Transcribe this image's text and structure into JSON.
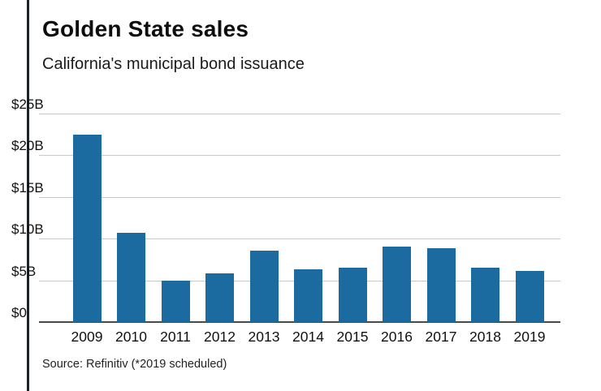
{
  "header": {
    "title": "Golden State sales",
    "subtitle": "California's municipal bond issuance"
  },
  "source": "Source: Refinitiv (*2019 scheduled)",
  "colors": {
    "bar": "#1b6ba0",
    "accent_rule": "#18242e",
    "gridline": "#c9c9c9",
    "baseline": "#4a4a4a"
  },
  "chart_data": {
    "type": "bar",
    "title": "Golden State sales",
    "subtitle": "California's municipal bond issuance",
    "categories": [
      "2009",
      "2010",
      "2011",
      "2012",
      "2013",
      "2014",
      "2015",
      "2016",
      "2017",
      "2018",
      "2019"
    ],
    "values": [
      22.5,
      10.7,
      5.0,
      5.8,
      8.6,
      6.3,
      6.5,
      9.0,
      8.9,
      6.5,
      6.1
    ],
    "xlabel": "",
    "ylabel": "",
    "ylim": [
      0,
      25
    ],
    "ytick_step": 5,
    "ytick_labels": [
      "$0",
      "$5B",
      "$10B",
      "$15B",
      "$20B",
      "$25B"
    ],
    "unit": "billions USD",
    "grid": true,
    "legend": "none",
    "bar_color": "#1b6ba0",
    "source": "Source: Refinitiv (*2019 scheduled)"
  }
}
